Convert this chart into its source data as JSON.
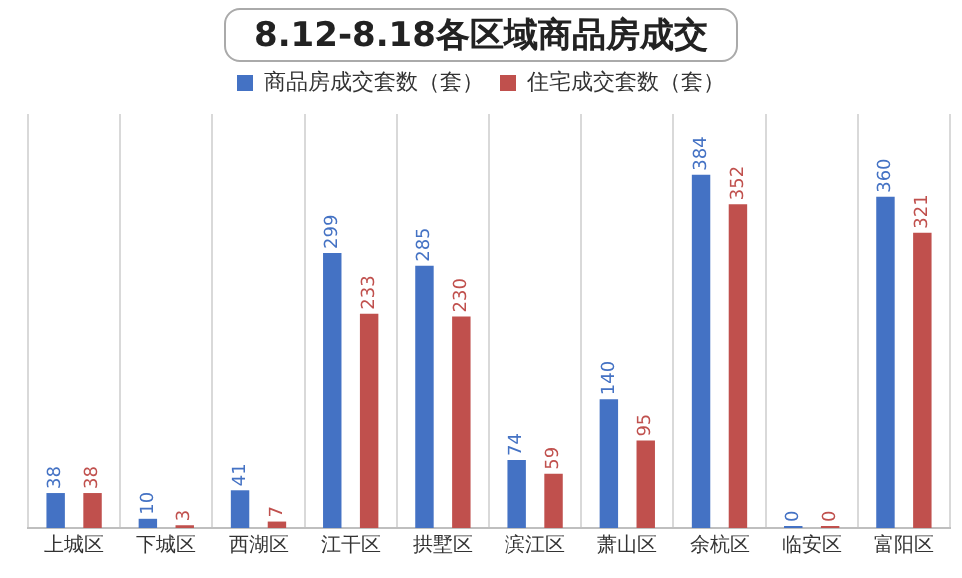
{
  "chart_data": {
    "type": "bar",
    "title": "8.12-8.18各区域商品房成交",
    "categories": [
      "上城区",
      "下城区",
      "西湖区",
      "江干区",
      "拱墅区",
      "滨江区",
      "萧山区",
      "余杭区",
      "临安区",
      "富阳区"
    ],
    "series": [
      {
        "name": "商品房成交套数（套）",
        "color": "#4472c4",
        "values": [
          38,
          10,
          41,
          299,
          285,
          74,
          140,
          384,
          0,
          360
        ]
      },
      {
        "name": "住宅成交套数（套）",
        "color": "#c0504d",
        "values": [
          38,
          3,
          7,
          233,
          230,
          59,
          95,
          352,
          0,
          321
        ]
      }
    ],
    "relative": false,
    "data_labels": true,
    "legend": "top",
    "grid": "x"
  }
}
